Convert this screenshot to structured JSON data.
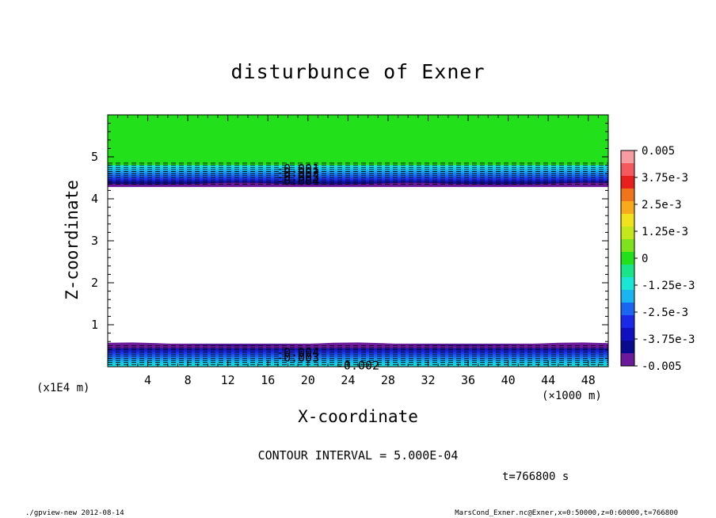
{
  "footer": {
    "left": "./gpview-new   2012-08-14",
    "right": "MarsCond_Exner.nc@Exner,x=0:50000,z=0:60000,t=766800"
  },
  "time_label": "t=766800 s",
  "interval_label": "CONTOUR INTERVAL = 5.000E-04",
  "chart_data": {
    "type": "heatmap",
    "title": "disturbunce of Exner",
    "xlabel": "X-coordinate",
    "ylabel": "Z-coordinate",
    "x_scale_label": "(×1000 m)",
    "y_scale_label": "(x1E4 m)",
    "xlim": [
      0,
      50
    ],
    "ylim": [
      0,
      6
    ],
    "x_ticks": [
      4,
      8,
      12,
      16,
      20,
      24,
      28,
      32,
      36,
      40,
      44,
      48
    ],
    "y_ticks": [
      1,
      2,
      3,
      4,
      5
    ],
    "colorbar": {
      "range": [
        -0.005,
        0.005
      ],
      "labels": [
        "0.005",
        "3.75e-3",
        "2.5e-3",
        "1.25e-3",
        "0",
        "-1.25e-3",
        "-2.5e-3",
        "-3.75e-3",
        "-0.005"
      ],
      "colors": [
        "#f79ca0",
        "#f45a5d",
        "#e8201c",
        "#f0741c",
        "#f8aa1c",
        "#f0e21c",
        "#c4e61c",
        "#7ee21c",
        "#22e01a",
        "#1ae48a",
        "#1ae6d6",
        "#1ab4f0",
        "#1a66f0",
        "#1a28e8",
        "#1010c0",
        "#0a0a8c",
        "#6a1a9a"
      ]
    },
    "bands": [
      {
        "name": "top-green",
        "z_range": [
          4.8,
          6.0
        ],
        "color": "#22e01a"
      },
      {
        "name": "upper-gradient",
        "z_range": [
          4.3,
          4.8
        ]
      },
      {
        "name": "lower-gradient",
        "z_range": [
          0.0,
          0.55
        ]
      }
    ],
    "contour_labels": [
      {
        "text": "-0.001",
        "x": 19,
        "z": 4.72
      },
      {
        "text": "-0.002",
        "x": 19,
        "z": 4.62
      },
      {
        "text": "-0.003",
        "x": 19,
        "z": 4.52
      },
      {
        "text": "-0.004",
        "x": 19,
        "z": 4.42
      },
      {
        "text": "-0.004",
        "x": 19,
        "z": 0.34
      },
      {
        "text": "-0.003",
        "x": 19,
        "z": 0.22
      },
      {
        "text": "-0.002",
        "x": 25,
        "z": 0.03
      }
    ]
  }
}
